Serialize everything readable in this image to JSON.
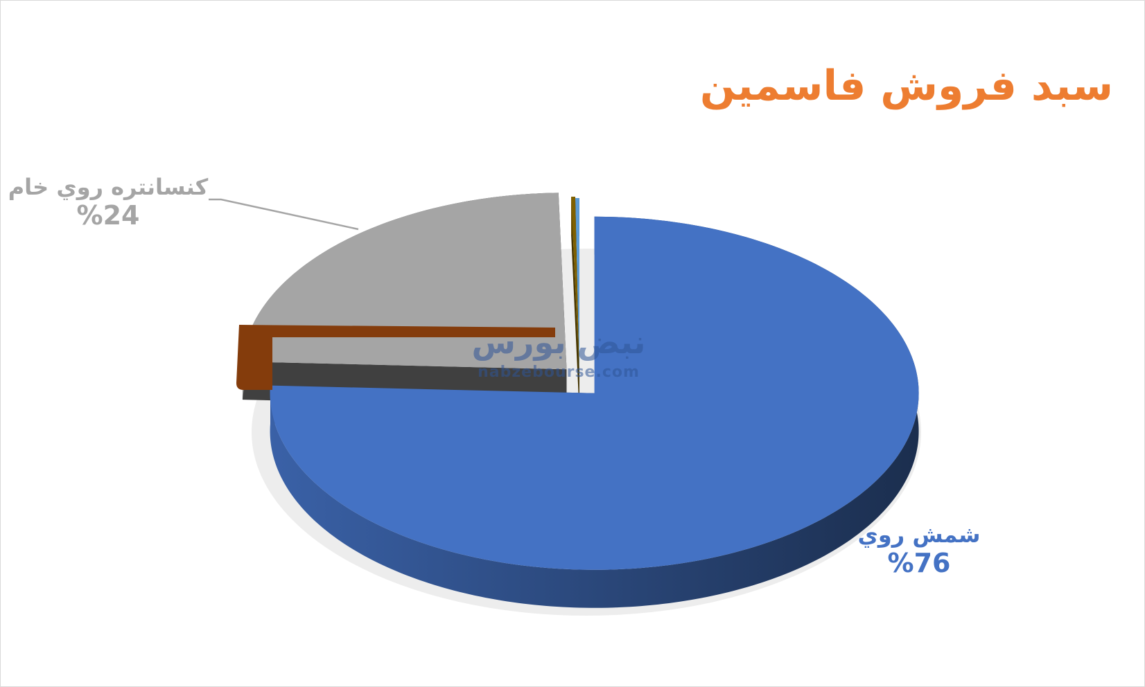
{
  "chart_data": {
    "type": "pie",
    "style": "3d-exploded",
    "title": "سبد فروش فاسمین",
    "title_color": "#ED7D31",
    "slices": [
      {
        "name": "شمش روي",
        "value": 76,
        "label": "%76",
        "color": "#4472C4"
      },
      {
        "name": "کنسانتره روي خام",
        "value": 24,
        "label": "%24",
        "color": "#A5A5A5"
      },
      {
        "name": "",
        "value": 0.2,
        "label": "",
        "color": "#7F6000"
      },
      {
        "name": "",
        "value": 0.2,
        "label": "",
        "color": "#5B9BD5"
      }
    ],
    "legend": "none"
  },
  "watermark": {
    "text_fa": "نبض بورس",
    "text_en": "nabzebourse.com"
  }
}
